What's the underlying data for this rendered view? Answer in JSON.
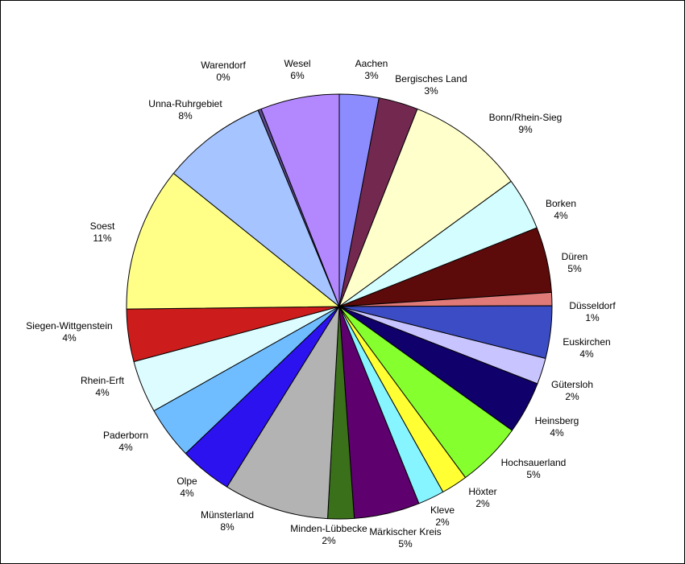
{
  "chart_data": {
    "type": "pie",
    "title": "",
    "legend": "none",
    "slices": [
      {
        "label": "Aachen",
        "value": 3,
        "pct": "3%",
        "color": "#8C8CFF"
      },
      {
        "label": "Bergisches Land",
        "value": 3,
        "pct": "3%",
        "color": "#73284F"
      },
      {
        "label": "Bonn/Rhein-Sieg",
        "value": 9,
        "pct": "9%",
        "color": "#FFFFCC"
      },
      {
        "label": "Borken",
        "value": 4,
        "pct": "4%",
        "color": "#D4FDFF"
      },
      {
        "label": "Düren",
        "value": 5,
        "pct": "5%",
        "color": "#5C0A0A"
      },
      {
        "label": "Düsseldorf",
        "value": 1,
        "pct": "1%",
        "color": "#E07A78"
      },
      {
        "label": "Euskirchen",
        "value": 4,
        "pct": "4%",
        "color": "#3B4CC4"
      },
      {
        "label": "Gütersloh",
        "value": 2,
        "pct": "2%",
        "color": "#C8C4FF"
      },
      {
        "label": "Heinsberg",
        "value": 4,
        "pct": "4%",
        "color": "#10006B"
      },
      {
        "label": "Hochsauerland",
        "value": 5,
        "pct": "5%",
        "color": "#86FF2E"
      },
      {
        "label": "Höxter",
        "value": 2,
        "pct": "2%",
        "color": "#FFFF33"
      },
      {
        "label": "Kleve",
        "value": 2,
        "pct": "2%",
        "color": "#86F5FF"
      },
      {
        "label": "Märkischer Kreis",
        "value": 5,
        "pct": "5%",
        "color": "#5E006E"
      },
      {
        "label": "Minden-Lübbecke",
        "value": 2,
        "pct": "2%",
        "color": "#3A701A"
      },
      {
        "label": "Münsterland",
        "value": 8,
        "pct": "8%",
        "color": "#B3B3B3"
      },
      {
        "label": "Olpe",
        "value": 4,
        "pct": "4%",
        "color": "#2D12F0"
      },
      {
        "label": "Paderborn",
        "value": 4,
        "pct": "4%",
        "color": "#6FBDFF"
      },
      {
        "label": "Rhein-Erft",
        "value": 4,
        "pct": "4%",
        "color": "#DDFCFF"
      },
      {
        "label": "Siegen-Wittgenstein",
        "value": 4,
        "pct": "4%",
        "color": "#CC1C1C"
      },
      {
        "label": "Soest",
        "value": 11,
        "pct": "11%",
        "color": "#FFFF88"
      },
      {
        "label": "Unna-Ruhrgebiet",
        "value": 8,
        "pct": "8%",
        "color": "#A6C4FF"
      },
      {
        "label": "Warendorf",
        "value": 0.25,
        "pct": "0%",
        "color": "#5A4A8A"
      },
      {
        "label": "Wesel",
        "value": 6,
        "pct": "6%",
        "color": "#B388FF"
      }
    ]
  }
}
